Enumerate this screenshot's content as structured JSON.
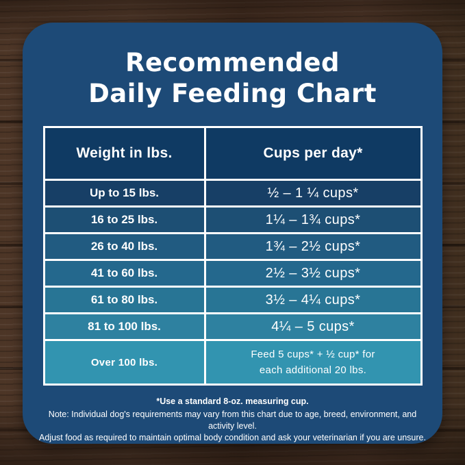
{
  "title": {
    "line1": "Recommended",
    "line2": "Daily Feeding Chart"
  },
  "table": {
    "headers": [
      "Weight in lbs.",
      "Cups per day*"
    ],
    "rows": [
      {
        "weight": "Up to 15 lbs.",
        "cups": "½ – 1 ¼ cups*"
      },
      {
        "weight": "16 to 25 lbs.",
        "cups": "1¼ – 1¾  cups*"
      },
      {
        "weight": "26 to 40 lbs.",
        "cups": "1¾ – 2½ cups*"
      },
      {
        "weight": "41 to 60 lbs.",
        "cups": "2½ – 3½ cups*"
      },
      {
        "weight": "61 to 80 lbs.",
        "cups": "3½ – 4¼ cups*"
      },
      {
        "weight": "81 to 100 lbs.",
        "cups": "4¼ – 5 cups*"
      },
      {
        "weight": "Over 100 lbs.",
        "cups_line1": "Feed 5 cups* + ½ cup* for",
        "cups_line2": "each additional 20 lbs."
      }
    ],
    "row_colors": [
      "#173f66",
      "#1d4f74",
      "#215b81",
      "#24688d",
      "#287595",
      "#2e81a0",
      "#3294b0"
    ]
  },
  "footnotes": {
    "measuring_cup": "*Use a standard 8-oz. measuring cup.",
    "note_line1": "Note: Individual dog's requirements may vary from this chart due to age, breed, environment, and activity level.",
    "note_line2": "Adjust food as required to maintain optimal body condition and ask your veterinarian if you are unsure."
  },
  "colors": {
    "wood_base": "#523726",
    "card_bg": "#1d4a77",
    "header_bg": "#0f3a63",
    "border_white": "#ffffff",
    "text_white": "#ffffff"
  },
  "chart_data": {
    "type": "table",
    "title": "Recommended Daily Feeding Chart",
    "columns": [
      "Weight in lbs.",
      "Cups per day*"
    ],
    "rows": [
      [
        "Up to 15 lbs.",
        "½ – 1 ¼ cups*"
      ],
      [
        "16 to 25 lbs.",
        "1¼ – 1¾ cups*"
      ],
      [
        "26 to 40 lbs.",
        "1¾ – 2½ cups*"
      ],
      [
        "41 to 60 lbs.",
        "2½ – 3½ cups*"
      ],
      [
        "61 to 80 lbs.",
        "3½ – 4¼ cups*"
      ],
      [
        "81 to 100 lbs.",
        "4¼ – 5 cups*"
      ],
      [
        "Over 100 lbs.",
        "Feed 5 cups* + ½ cup* for each additional 20 lbs."
      ]
    ],
    "footnote": "*Use a standard 8-oz. measuring cup."
  }
}
